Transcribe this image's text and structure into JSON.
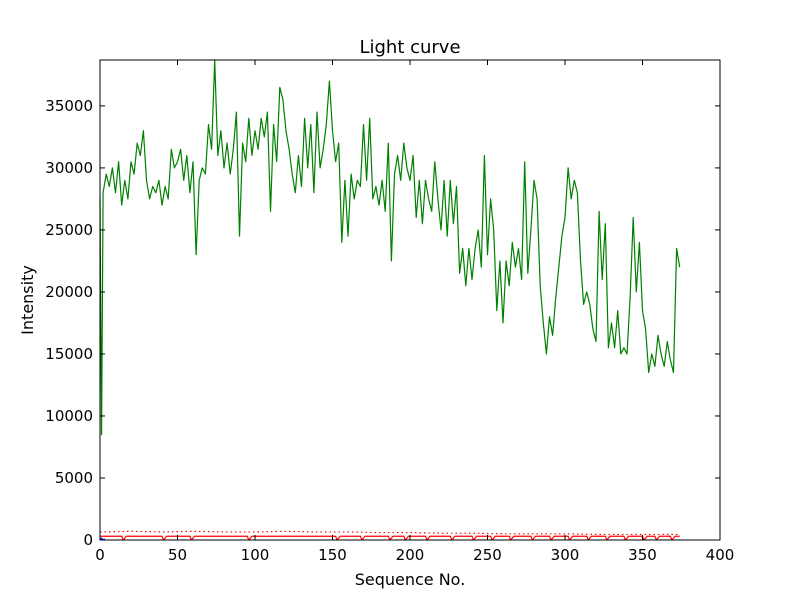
{
  "chart_data": {
    "type": "line",
    "title": "Light curve",
    "xlabel": "Sequence No.",
    "ylabel": "Intensity",
    "xlim": [
      0,
      400
    ],
    "ylim": [
      0,
      38700
    ],
    "xticks": [
      "0",
      "50",
      "100",
      "150",
      "200",
      "250",
      "300",
      "350",
      "400"
    ],
    "yticks": [
      "0",
      "5000",
      "10000",
      "15000",
      "20000",
      "25000",
      "30000",
      "35000"
    ],
    "grid": false,
    "legend": "none",
    "series": [
      {
        "color": "#008000",
        "style": "solid",
        "points": [
          [
            0,
            27500
          ],
          [
            1,
            8500
          ],
          [
            2,
            28000
          ],
          [
            4,
            29500
          ],
          [
            6,
            28500
          ],
          [
            8,
            30000
          ],
          [
            10,
            28000
          ],
          [
            12,
            30500
          ],
          [
            14,
            27000
          ],
          [
            16,
            29000
          ],
          [
            18,
            27500
          ],
          [
            20,
            30500
          ],
          [
            22,
            29500
          ],
          [
            24,
            32000
          ],
          [
            26,
            31000
          ],
          [
            28,
            33000
          ],
          [
            30,
            29000
          ],
          [
            32,
            27500
          ],
          [
            34,
            28500
          ],
          [
            36,
            28000
          ],
          [
            38,
            29000
          ],
          [
            40,
            27000
          ],
          [
            42,
            28500
          ],
          [
            44,
            27500
          ],
          [
            46,
            31500
          ],
          [
            48,
            30000
          ],
          [
            50,
            30500
          ],
          [
            52,
            31500
          ],
          [
            54,
            29000
          ],
          [
            56,
            31000
          ],
          [
            58,
            28000
          ],
          [
            60,
            30500
          ],
          [
            62,
            23000
          ],
          [
            64,
            29000
          ],
          [
            66,
            30000
          ],
          [
            68,
            29500
          ],
          [
            70,
            33500
          ],
          [
            72,
            31500
          ],
          [
            74,
            38700
          ],
          [
            76,
            31000
          ],
          [
            78,
            33000
          ],
          [
            80,
            30000
          ],
          [
            82,
            32000
          ],
          [
            84,
            29500
          ],
          [
            86,
            31500
          ],
          [
            88,
            34500
          ],
          [
            90,
            24500
          ],
          [
            92,
            32000
          ],
          [
            94,
            30500
          ],
          [
            96,
            34000
          ],
          [
            98,
            31000
          ],
          [
            100,
            33000
          ],
          [
            102,
            31500
          ],
          [
            104,
            34000
          ],
          [
            106,
            32500
          ],
          [
            108,
            34500
          ],
          [
            110,
            26500
          ],
          [
            112,
            33500
          ],
          [
            114,
            30500
          ],
          [
            116,
            36500
          ],
          [
            118,
            35500
          ],
          [
            120,
            33000
          ],
          [
            122,
            31500
          ],
          [
            124,
            29500
          ],
          [
            126,
            28000
          ],
          [
            128,
            31000
          ],
          [
            130,
            28500
          ],
          [
            132,
            34000
          ],
          [
            134,
            30000
          ],
          [
            136,
            33500
          ],
          [
            138,
            28000
          ],
          [
            140,
            34500
          ],
          [
            142,
            30000
          ],
          [
            144,
            31500
          ],
          [
            146,
            33500
          ],
          [
            148,
            37000
          ],
          [
            150,
            33000
          ],
          [
            152,
            30500
          ],
          [
            154,
            32000
          ],
          [
            156,
            24000
          ],
          [
            158,
            29000
          ],
          [
            160,
            24500
          ],
          [
            162,
            29500
          ],
          [
            164,
            27500
          ],
          [
            166,
            29000
          ],
          [
            168,
            28500
          ],
          [
            170,
            33500
          ],
          [
            172,
            29000
          ],
          [
            174,
            34000
          ],
          [
            176,
            27500
          ],
          [
            178,
            28500
          ],
          [
            180,
            27000
          ],
          [
            182,
            29000
          ],
          [
            184,
            26500
          ],
          [
            186,
            32000
          ],
          [
            188,
            22500
          ],
          [
            190,
            29500
          ],
          [
            192,
            31000
          ],
          [
            194,
            29000
          ],
          [
            196,
            32000
          ],
          [
            198,
            30000
          ],
          [
            200,
            29000
          ],
          [
            202,
            31000
          ],
          [
            204,
            26000
          ],
          [
            206,
            29000
          ],
          [
            208,
            25500
          ],
          [
            210,
            29000
          ],
          [
            212,
            27500
          ],
          [
            214,
            26500
          ],
          [
            216,
            30500
          ],
          [
            218,
            27500
          ],
          [
            220,
            25000
          ],
          [
            222,
            29000
          ],
          [
            224,
            24500
          ],
          [
            226,
            29000
          ],
          [
            228,
            25500
          ],
          [
            230,
            28500
          ],
          [
            232,
            21500
          ],
          [
            234,
            23500
          ],
          [
            236,
            20500
          ],
          [
            238,
            23500
          ],
          [
            240,
            21000
          ],
          [
            242,
            23500
          ],
          [
            244,
            25000
          ],
          [
            246,
            22000
          ],
          [
            248,
            31000
          ],
          [
            250,
            23000
          ],
          [
            252,
            27500
          ],
          [
            254,
            25000
          ],
          [
            256,
            18500
          ],
          [
            258,
            22500
          ],
          [
            260,
            17500
          ],
          [
            262,
            22500
          ],
          [
            264,
            20500
          ],
          [
            266,
            24000
          ],
          [
            268,
            22000
          ],
          [
            270,
            23500
          ],
          [
            272,
            21000
          ],
          [
            274,
            30500
          ],
          [
            276,
            21500
          ],
          [
            278,
            25000
          ],
          [
            280,
            29000
          ],
          [
            282,
            27500
          ],
          [
            284,
            20500
          ],
          [
            286,
            17500
          ],
          [
            288,
            15000
          ],
          [
            290,
            18000
          ],
          [
            292,
            16500
          ],
          [
            294,
            19500
          ],
          [
            296,
            22000
          ],
          [
            298,
            24500
          ],
          [
            300,
            26000
          ],
          [
            302,
            30000
          ],
          [
            304,
            27500
          ],
          [
            306,
            29000
          ],
          [
            308,
            28000
          ],
          [
            310,
            22500
          ],
          [
            312,
            19000
          ],
          [
            314,
            20000
          ],
          [
            316,
            19000
          ],
          [
            318,
            17000
          ],
          [
            320,
            16000
          ],
          [
            322,
            26500
          ],
          [
            324,
            21000
          ],
          [
            326,
            25500
          ],
          [
            328,
            15500
          ],
          [
            330,
            17500
          ],
          [
            332,
            15500
          ],
          [
            334,
            18500
          ],
          [
            336,
            15000
          ],
          [
            338,
            15500
          ],
          [
            340,
            15000
          ],
          [
            342,
            19500
          ],
          [
            344,
            26000
          ],
          [
            346,
            20000
          ],
          [
            348,
            24000
          ],
          [
            350,
            18500
          ],
          [
            352,
            17000
          ],
          [
            354,
            13500
          ],
          [
            356,
            15000
          ],
          [
            358,
            14000
          ],
          [
            360,
            16500
          ],
          [
            362,
            15000
          ],
          [
            364,
            14000
          ],
          [
            366,
            16000
          ],
          [
            368,
            14500
          ],
          [
            370,
            13500
          ],
          [
            372,
            23500
          ],
          [
            374,
            22000
          ]
        ]
      },
      {
        "color": "#ff0000",
        "style": "solid",
        "points": [
          [
            0,
            300
          ],
          [
            14,
            300
          ],
          [
            15,
            0
          ],
          [
            17,
            300
          ],
          [
            40,
            300
          ],
          [
            41,
            0
          ],
          [
            43,
            300
          ],
          [
            58,
            300
          ],
          [
            59,
            0
          ],
          [
            61,
            300
          ],
          [
            95,
            300
          ],
          [
            96,
            0
          ],
          [
            98,
            300
          ],
          [
            152,
            300
          ],
          [
            153,
            0
          ],
          [
            155,
            300
          ],
          [
            168,
            300
          ],
          [
            169,
            0
          ],
          [
            171,
            300
          ],
          [
            186,
            300
          ],
          [
            187,
            0
          ],
          [
            189,
            300
          ],
          [
            196,
            300
          ],
          [
            197,
            0
          ],
          [
            199,
            300
          ],
          [
            210,
            300
          ],
          [
            211,
            0
          ],
          [
            213,
            300
          ],
          [
            226,
            300
          ],
          [
            227,
            0
          ],
          [
            229,
            300
          ],
          [
            240,
            300
          ],
          [
            241,
            0
          ],
          [
            243,
            300
          ],
          [
            252,
            300
          ],
          [
            253,
            0
          ],
          [
            255,
            300
          ],
          [
            264,
            300
          ],
          [
            265,
            0
          ],
          [
            267,
            300
          ],
          [
            278,
            300
          ],
          [
            279,
            0
          ],
          [
            281,
            300
          ],
          [
            290,
            300
          ],
          [
            291,
            0
          ],
          [
            293,
            300
          ],
          [
            302,
            300
          ],
          [
            303,
            0
          ],
          [
            305,
            300
          ],
          [
            314,
            300
          ],
          [
            315,
            0
          ],
          [
            317,
            300
          ],
          [
            326,
            300
          ],
          [
            327,
            0
          ],
          [
            329,
            300
          ],
          [
            338,
            300
          ],
          [
            339,
            0
          ],
          [
            341,
            300
          ],
          [
            350,
            300
          ],
          [
            351,
            0
          ],
          [
            353,
            300
          ],
          [
            358,
            300
          ],
          [
            359,
            0
          ],
          [
            361,
            300
          ],
          [
            368,
            300
          ],
          [
            369,
            0
          ],
          [
            371,
            300
          ],
          [
            374,
            300
          ]
        ]
      },
      {
        "color": "#ff0000",
        "style": "dotted",
        "points": [
          [
            0,
            650
          ],
          [
            20,
            700
          ],
          [
            40,
            650
          ],
          [
            60,
            700
          ],
          [
            80,
            650
          ],
          [
            100,
            650
          ],
          [
            120,
            700
          ],
          [
            140,
            650
          ],
          [
            160,
            650
          ],
          [
            180,
            600
          ],
          [
            200,
            600
          ],
          [
            220,
            550
          ],
          [
            240,
            550
          ],
          [
            260,
            500
          ],
          [
            280,
            500
          ],
          [
            300,
            500
          ],
          [
            320,
            450
          ],
          [
            340,
            450
          ],
          [
            360,
            450
          ],
          [
            374,
            450
          ]
        ]
      },
      {
        "color": "#0000ff",
        "style": "solid",
        "points": [
          [
            0,
            0
          ],
          [
            1,
            150
          ],
          [
            2,
            0
          ],
          [
            3,
            100
          ]
        ]
      }
    ]
  }
}
